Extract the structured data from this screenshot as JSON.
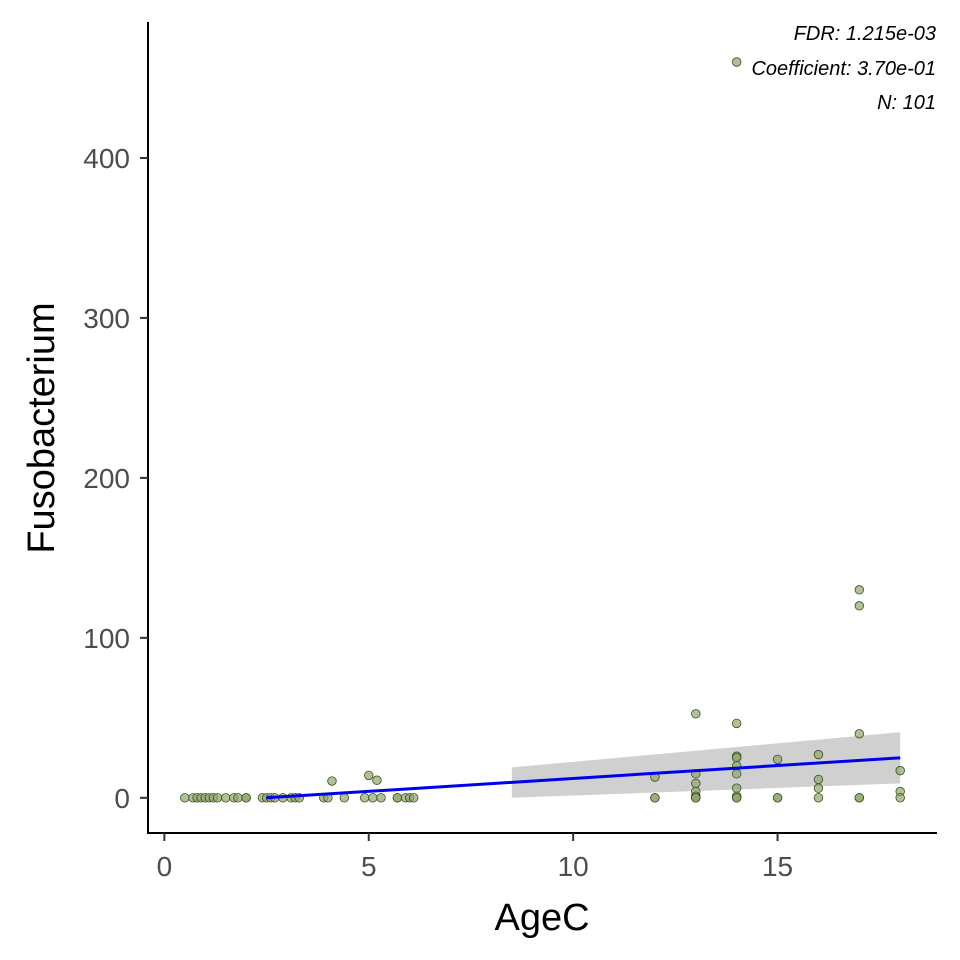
{
  "chart_data": {
    "type": "scatter",
    "title": "",
    "xlabel": "AgeC",
    "ylabel": "Fusobacterium",
    "xlim": [
      -0.4,
      18.9
    ],
    "ylim": [
      -22,
      485
    ],
    "xticks": [
      0,
      5,
      10,
      15
    ],
    "yticks": [
      0,
      100,
      200,
      300,
      400
    ],
    "grid": false,
    "legend": "none",
    "point_color": "#8ea66b",
    "point_edge": "#3a4a1e",
    "line_color": "#0000ee",
    "band_color": "#c8c8c8",
    "annotations": [
      {
        "label": "FDR: 1.215e-03"
      },
      {
        "label": "Coefficient: 3.70e-01"
      },
      {
        "label": "N: 101"
      }
    ],
    "points": [
      [
        0.5,
        0
      ],
      [
        0.7,
        0
      ],
      [
        0.8,
        0
      ],
      [
        0.9,
        0
      ],
      [
        1.0,
        0
      ],
      [
        1.1,
        0
      ],
      [
        1.2,
        0
      ],
      [
        1.3,
        0
      ],
      [
        1.5,
        0
      ],
      [
        1.7,
        0
      ],
      [
        1.8,
        0
      ],
      [
        2.0,
        0
      ],
      [
        2.0,
        0
      ],
      [
        2.4,
        0
      ],
      [
        2.5,
        0
      ],
      [
        2.6,
        0
      ],
      [
        2.7,
        0
      ],
      [
        2.9,
        0
      ],
      [
        3.1,
        0
      ],
      [
        3.2,
        0
      ],
      [
        3.3,
        0
      ],
      [
        3.9,
        0
      ],
      [
        4.0,
        0
      ],
      [
        4.1,
        10.5
      ],
      [
        4.4,
        0
      ],
      [
        4.9,
        0
      ],
      [
        5.0,
        14
      ],
      [
        5.1,
        0
      ],
      [
        5.2,
        11
      ],
      [
        5.3,
        0
      ],
      [
        5.7,
        0
      ],
      [
        5.7,
        0
      ],
      [
        5.9,
        0
      ],
      [
        6.0,
        0
      ],
      [
        6.1,
        0
      ],
      [
        12.0,
        0
      ],
      [
        12.0,
        0
      ],
      [
        12.0,
        13
      ],
      [
        13.0,
        52.5
      ],
      [
        13.0,
        15
      ],
      [
        13.0,
        9
      ],
      [
        13.0,
        4
      ],
      [
        13.0,
        1
      ],
      [
        13.0,
        0
      ],
      [
        13.0,
        0
      ],
      [
        13.0,
        0
      ],
      [
        14.0,
        460
      ],
      [
        14.0,
        46.5
      ],
      [
        14.0,
        26
      ],
      [
        14.0,
        25
      ],
      [
        14.0,
        20
      ],
      [
        14.0,
        15
      ],
      [
        14.0,
        6
      ],
      [
        14.0,
        1
      ],
      [
        14.0,
        0
      ],
      [
        14.0,
        0
      ],
      [
        15.0,
        24
      ],
      [
        15.0,
        0
      ],
      [
        15.0,
        0
      ],
      [
        16.0,
        27
      ],
      [
        16.0,
        11.5
      ],
      [
        16.0,
        6
      ],
      [
        16.0,
        0
      ],
      [
        17.0,
        130
      ],
      [
        17.0,
        120
      ],
      [
        17.0,
        40
      ],
      [
        17.0,
        0
      ],
      [
        17.0,
        0
      ],
      [
        18.0,
        17
      ],
      [
        18.0,
        4
      ],
      [
        18.0,
        0
      ]
    ],
    "fit_line": {
      "x": [
        2.5,
        18.0
      ],
      "y": [
        0,
        25
      ]
    },
    "confidence_band": {
      "x": [
        8.5,
        18.0
      ],
      "lower": [
        0,
        9
      ],
      "upper": [
        19,
        41
      ]
    }
  }
}
